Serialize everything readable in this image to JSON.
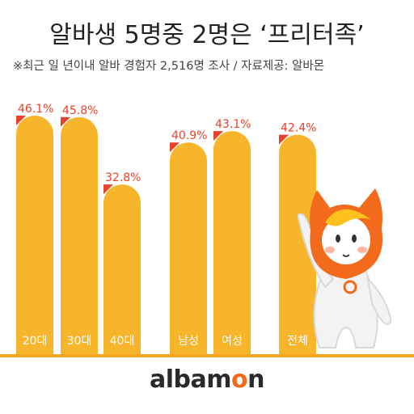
{
  "title": "알바생 5명중 2명은 ‘프리터족’",
  "subtitle": "※최근 일 년이내 알바 경험자 2,516명 조사 / 자료제공: 알바몬",
  "logo": {
    "pre": "albam",
    "accent": "o",
    "post": "n"
  },
  "colors": {
    "bar": "#f7b52c",
    "accent": "#e8422a",
    "mascot": "#f26b1d",
    "line": "#f4a51c"
  },
  "chart_data": {
    "type": "bar",
    "categories": [
      "20대",
      "30대",
      "40대",
      "남성",
      "여성",
      "전체"
    ],
    "values": [
      46.1,
      45.8,
      32.8,
      40.9,
      43.1,
      42.4
    ],
    "value_labels": [
      "46.1%",
      "45.8%",
      "32.8%",
      "40.9%",
      "43.1%",
      "42.4%"
    ],
    "title": "알바생 5명중 2명은 ‘프리터족’",
    "ylim": [
      0,
      100
    ],
    "grid": false,
    "legend": "none"
  },
  "mascot_icon": "albamon-mascot-icon"
}
